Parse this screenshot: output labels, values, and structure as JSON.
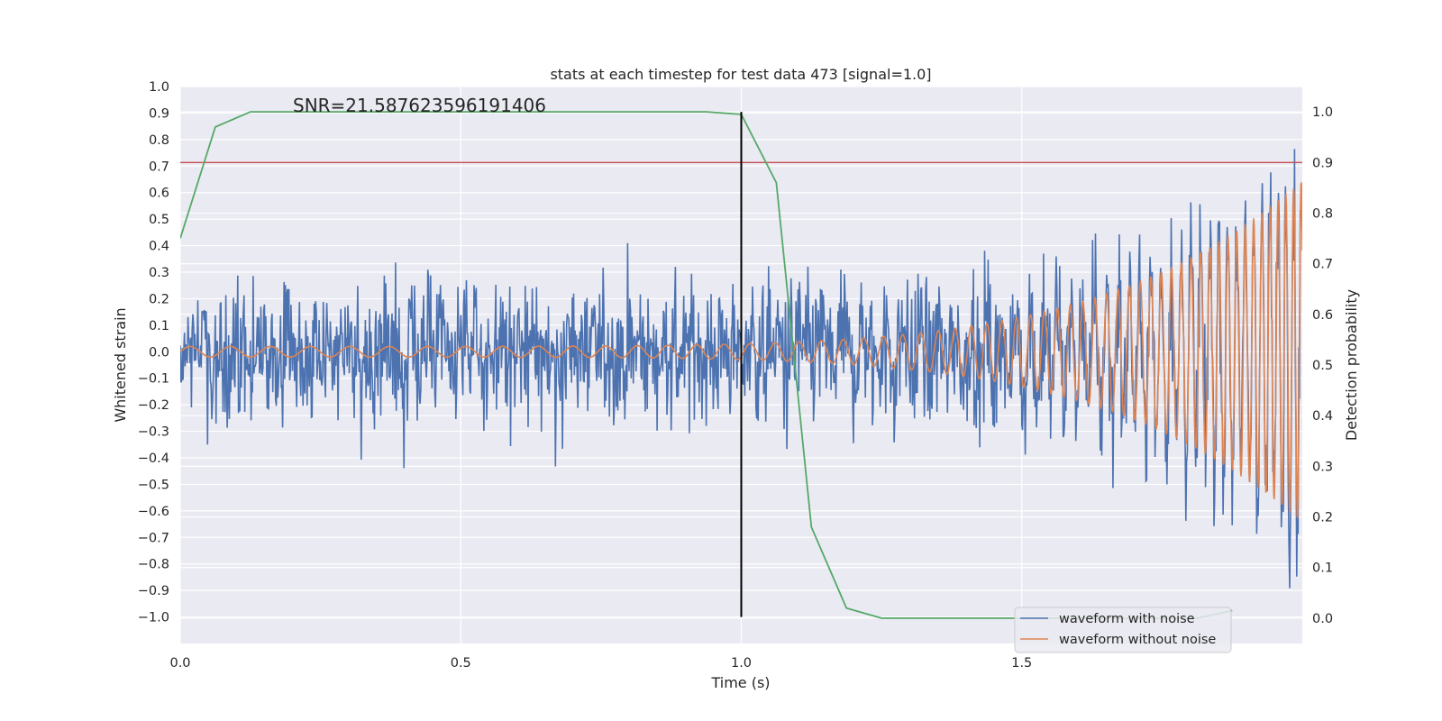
{
  "chart_data": {
    "type": "line",
    "title": "stats at each timestep for test data 473 [signal=1.0]",
    "xlabel": "Time (s)",
    "ylabel": "Whitened strain",
    "y2label": "Detection probability",
    "annotation": "SNR=21.587623596191406",
    "xlim": [
      0.0,
      2.0
    ],
    "ylim": [
      -1.1,
      1.0
    ],
    "y2lim": [
      -0.05,
      1.05
    ],
    "x_ticks": [
      {
        "value": 0.0,
        "label": "0.0"
      },
      {
        "value": 0.5,
        "label": "0.5"
      },
      {
        "value": 1.0,
        "label": "1.0"
      },
      {
        "value": 1.5,
        "label": "1.5"
      }
    ],
    "y_ticks": [
      {
        "value": 1.0,
        "label": "1.0"
      },
      {
        "value": 0.9,
        "label": "0.9"
      },
      {
        "value": 0.8,
        "label": "0.8"
      },
      {
        "value": 0.7,
        "label": "0.7"
      },
      {
        "value": 0.6,
        "label": "0.6"
      },
      {
        "value": 0.5,
        "label": "0.5"
      },
      {
        "value": 0.4,
        "label": "0.4"
      },
      {
        "value": 0.3,
        "label": "0.3"
      },
      {
        "value": 0.2,
        "label": "0.2"
      },
      {
        "value": 0.1,
        "label": "0.1"
      },
      {
        "value": 0.0,
        "label": "0.0"
      },
      {
        "value": -0.1,
        "label": "−0.1"
      },
      {
        "value": -0.2,
        "label": "−0.2"
      },
      {
        "value": -0.3,
        "label": "−0.3"
      },
      {
        "value": -0.4,
        "label": "−0.4"
      },
      {
        "value": -0.5,
        "label": "−0.5"
      },
      {
        "value": -0.6,
        "label": "−0.6"
      },
      {
        "value": -0.7,
        "label": "−0.7"
      },
      {
        "value": -0.8,
        "label": "−0.8"
      },
      {
        "value": -0.9,
        "label": "−0.9"
      },
      {
        "value": -1.0,
        "label": "−1.0"
      }
    ],
    "y2_ticks": [
      {
        "value": 1.0,
        "label": "1.0"
      },
      {
        "value": 0.9,
        "label": "0.9"
      },
      {
        "value": 0.8,
        "label": "0.8"
      },
      {
        "value": 0.7,
        "label": "0.7"
      },
      {
        "value": 0.6,
        "label": "0.6"
      },
      {
        "value": 0.5,
        "label": "0.5"
      },
      {
        "value": 0.4,
        "label": "0.4"
      },
      {
        "value": 0.3,
        "label": "0.3"
      },
      {
        "value": 0.2,
        "label": "0.2"
      },
      {
        "value": 0.1,
        "label": "0.1"
      },
      {
        "value": 0.0,
        "label": "0.0"
      }
    ],
    "grid": true,
    "legend": {
      "placement": "lower-right",
      "entries": [
        {
          "name": "waveform with noise",
          "color": "#4c72b0"
        },
        {
          "name": "waveform without noise",
          "color": "#dd8452"
        }
      ]
    },
    "series": [
      {
        "name": "waveform with noise",
        "axis": "left",
        "color": "#4c72b0",
        "style": "noise",
        "x_range": [
          0.0,
          2.0
        ],
        "amplitude": 0.2,
        "min": -1.0,
        "max": 0.9
      },
      {
        "name": "waveform without noise",
        "axis": "left",
        "color": "#dd8452",
        "style": "chirp",
        "x_range": [
          0.0,
          2.0
        ],
        "amplitude_start": 0.02,
        "amplitude_end": 0.65,
        "freq_start_hz": 14,
        "freq_end_hz": 90
      },
      {
        "name": "detection probability",
        "axis": "right",
        "color": "#55a868",
        "x": [
          0.0,
          0.0625,
          0.125,
          0.1875,
          0.25,
          0.3125,
          0.375,
          0.4375,
          0.5,
          0.5625,
          0.625,
          0.6875,
          0.75,
          0.8125,
          0.875,
          0.9375,
          1.0,
          1.0625,
          1.125,
          1.1875,
          1.25,
          1.3125,
          1.375,
          1.4375,
          1.5,
          1.5625,
          1.625,
          1.6875,
          1.75,
          1.8125,
          1.875
        ],
        "y": [
          0.75,
          0.97,
          1.0,
          1.0,
          1.0,
          1.0,
          1.0,
          1.0,
          1.0,
          1.0,
          1.0,
          1.0,
          1.0,
          1.0,
          1.0,
          1.0,
          0.995,
          0.86,
          0.18,
          0.02,
          0.0,
          0.0,
          0.0,
          0.0,
          0.0,
          0.0,
          0.0,
          0.0,
          0.0,
          0.0,
          0.015
        ]
      }
    ],
    "threshold_line": {
      "axis": "right",
      "value": 0.9,
      "color": "#c44e52"
    },
    "vertical_line": {
      "x": 1.0,
      "color": "#000000"
    }
  }
}
